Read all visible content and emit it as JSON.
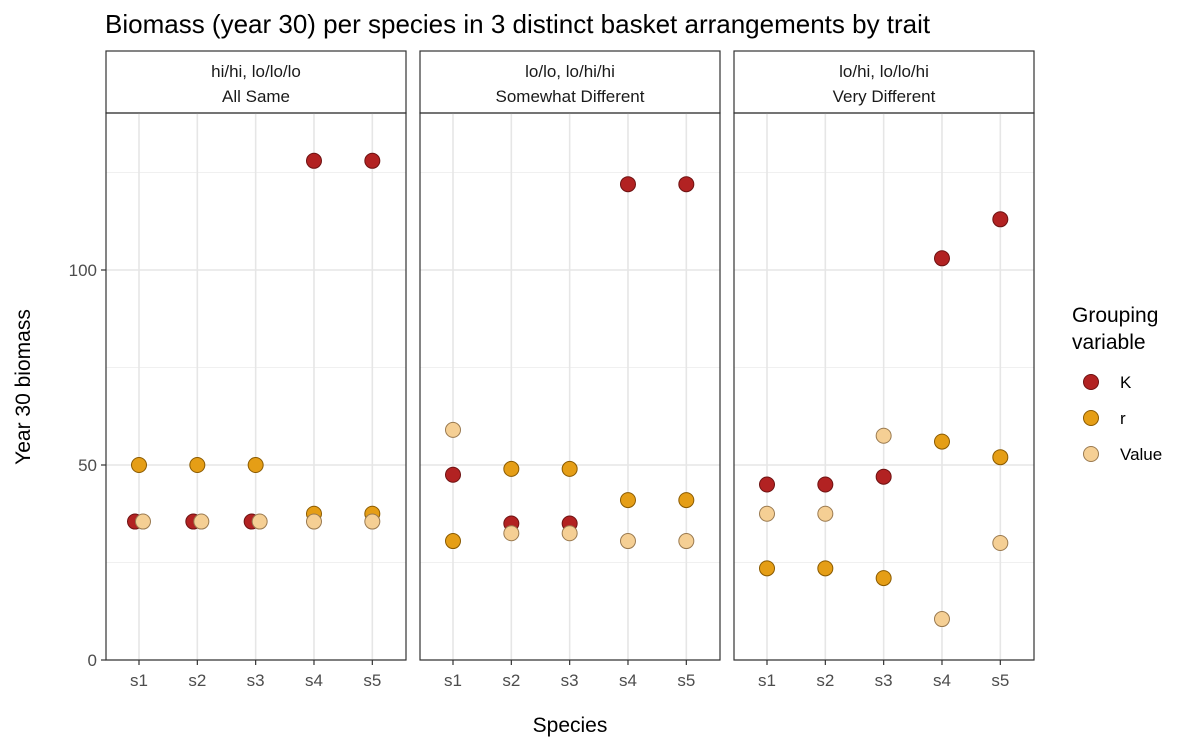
{
  "chart_data": {
    "type": "scatter",
    "title": "Biomass (year 30) per species in 3 distinct basket arrangements by trait",
    "xlabel": "Species",
    "ylabel": "Year 30 biomass",
    "categories": [
      "s1",
      "s2",
      "s3",
      "s4",
      "s5"
    ],
    "ylim": [
      0,
      140
    ],
    "yticks": [
      0,
      50,
      100
    ],
    "yticks_minor": [
      25,
      75,
      125
    ],
    "grid": true,
    "legend": {
      "title_lines": [
        "Grouping",
        "variable"
      ],
      "position": "right",
      "entries": [
        {
          "name": "K",
          "color": "#b22222"
        },
        {
          "name": "r",
          "color": "#e59e16"
        },
        {
          "name": "Value",
          "color": "#f5cf94"
        }
      ]
    },
    "colors": {
      "K": "#b22222",
      "r": "#e59e16",
      "Value": "#f5cf94"
    },
    "facets": [
      {
        "strip_line1": "hi/hi, lo/lo/lo",
        "strip_line2": "All Same",
        "series": [
          {
            "name": "K",
            "values": [
              35.5,
              35.5,
              35.5,
              128,
              128
            ]
          },
          {
            "name": "r",
            "values": [
              50,
              50,
              50,
              37.5,
              37.5
            ]
          },
          {
            "name": "Value",
            "values": [
              35.5,
              35.5,
              35.5,
              35.5,
              35.5
            ]
          }
        ]
      },
      {
        "strip_line1": "lo/lo, lo/hi/hi",
        "strip_line2": "Somewhat Different",
        "series": [
          {
            "name": "K",
            "values": [
              47.5,
              35,
              35,
              122,
              122
            ]
          },
          {
            "name": "r",
            "values": [
              30.5,
              49,
              49,
              41,
              41
            ]
          },
          {
            "name": "Value",
            "values": [
              59,
              32.5,
              32.5,
              30.5,
              30.5
            ]
          }
        ]
      },
      {
        "strip_line1": "lo/hi, lo/lo/hi",
        "strip_line2": "Very Different",
        "series": [
          {
            "name": "K",
            "values": [
              45,
              45,
              47,
              103,
              113
            ]
          },
          {
            "name": "r",
            "values": [
              23.5,
              23.5,
              21,
              56,
              52
            ]
          },
          {
            "name": "Value",
            "values": [
              37.5,
              37.5,
              57.5,
              10.5,
              30
            ]
          }
        ]
      }
    ]
  }
}
